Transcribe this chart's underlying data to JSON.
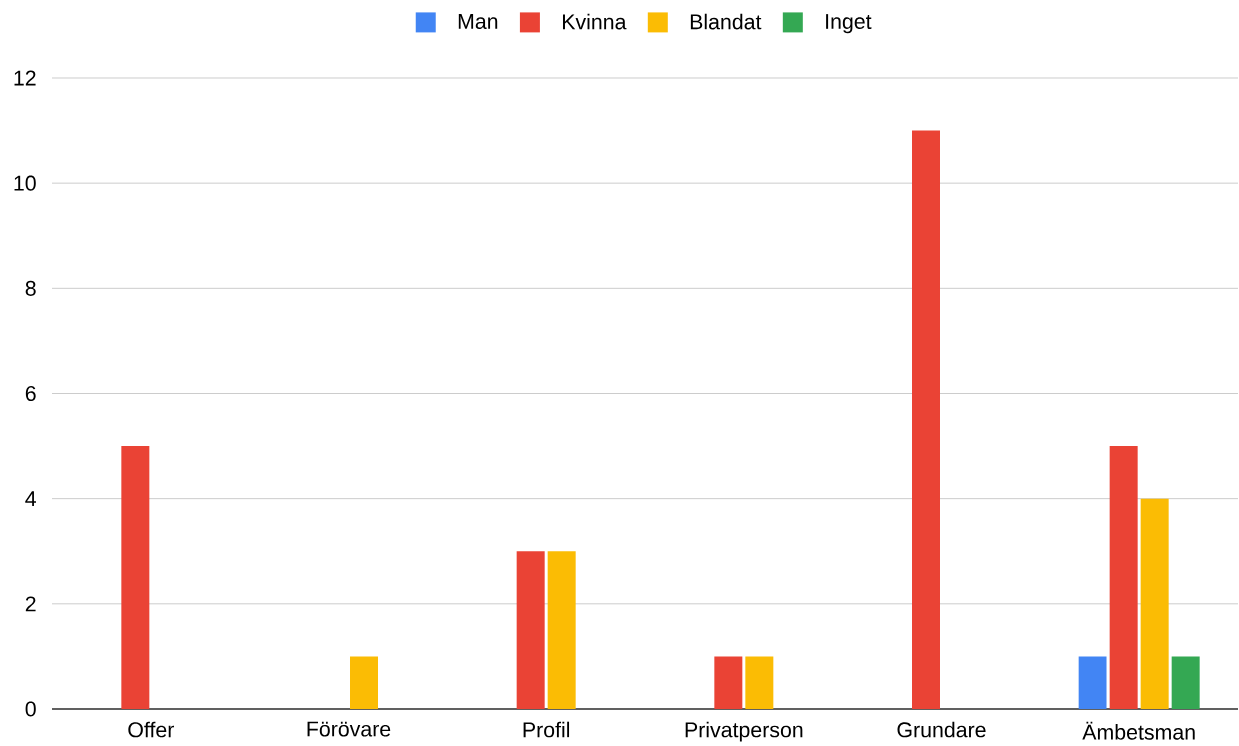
{
  "chart_data": {
    "type": "bar",
    "categories": [
      "Offer",
      "Förövare",
      "Profil",
      "Privatperson",
      "Grundare",
      "Ämbetsman"
    ],
    "series": [
      {
        "name": "Man",
        "color": "#4285f4",
        "values": [
          null,
          null,
          null,
          null,
          null,
          1
        ]
      },
      {
        "name": "Kvinna",
        "color": "#ea4335",
        "values": [
          5,
          null,
          3,
          1,
          11,
          5
        ]
      },
      {
        "name": "Blandat",
        "color": "#fbbc04",
        "values": [
          null,
          1,
          3,
          1,
          null,
          4
        ]
      },
      {
        "name": "Inget",
        "color": "#34a853",
        "values": [
          null,
          null,
          null,
          null,
          null,
          1
        ]
      }
    ],
    "ylim": [
      0,
      12
    ],
    "yticks": [
      0,
      2,
      4,
      6,
      8,
      10,
      12
    ],
    "grid": "y",
    "legend": "top"
  }
}
